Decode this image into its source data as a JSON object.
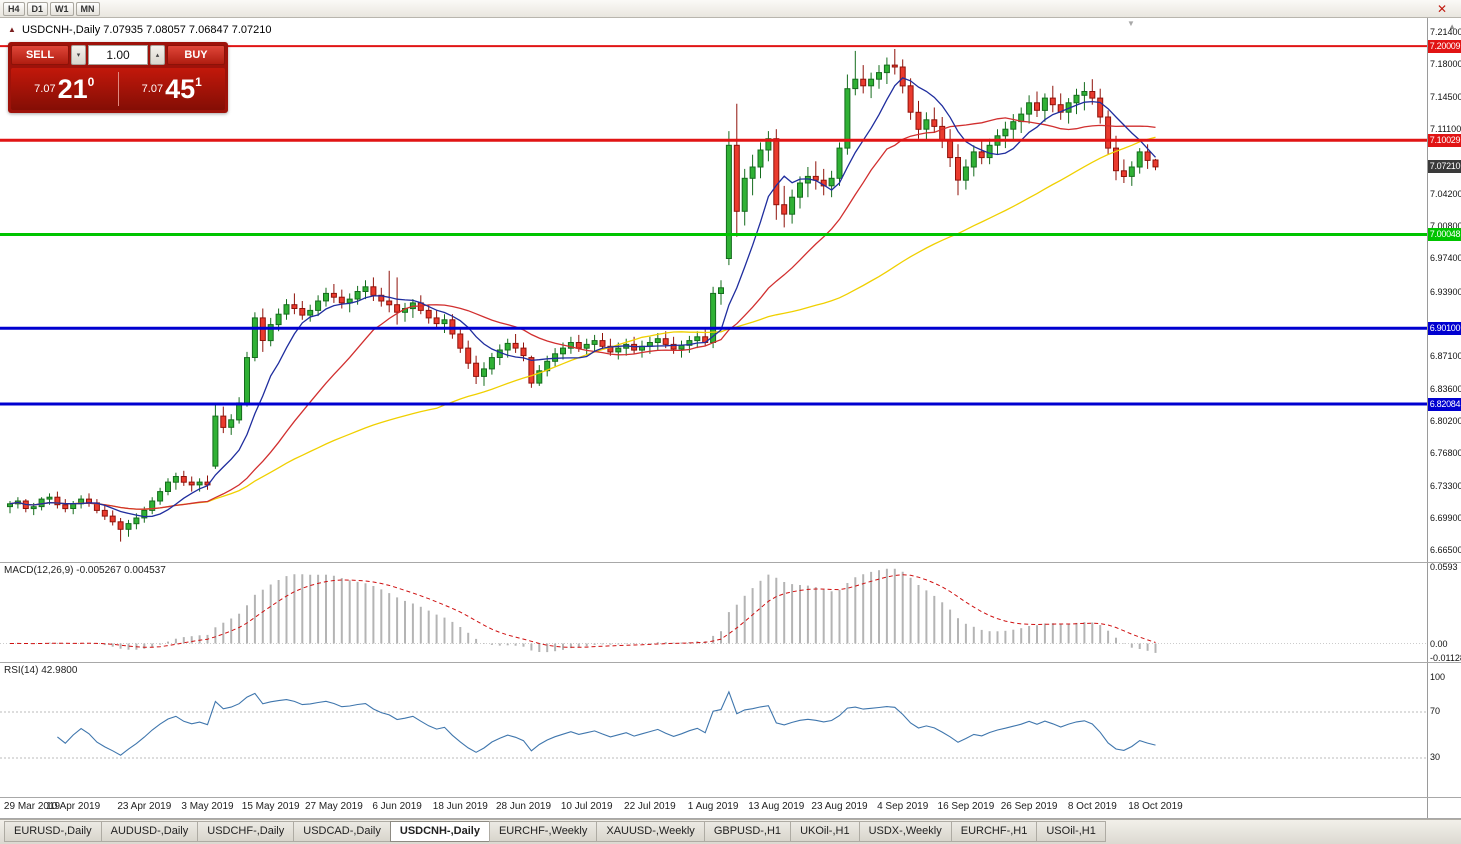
{
  "toolbar": {
    "timeframes": [
      "H4",
      "D1",
      "W1",
      "MN"
    ]
  },
  "icons": {
    "close": "✕",
    "up_arrow": "▴",
    "down_arrow": "▾",
    "scroll_up": "▲",
    "shift_marker": "▼",
    "title_marker": "▲"
  },
  "main": {
    "title": "USDCNH-,Daily",
    "ohlc": "7.07935 7.08057 7.06847 7.07210"
  },
  "trade_panel": {
    "sell_label": "SELL",
    "buy_label": "BUY",
    "volume": "1.00",
    "sell_price_small": "7.07",
    "sell_price_big": "21",
    "sell_price_sup": "0",
    "buy_price_small": "7.07",
    "buy_price_big": "45",
    "buy_price_sup": "1"
  },
  "indicators": {
    "macd": {
      "label": "MACD(12,26,9) -0.005267 0.004537",
      "axis": [
        {
          "text": "0.0593",
          "value": 0.0593
        },
        {
          "text": "0.00",
          "value": 0
        },
        {
          "text": "-0.01128",
          "value": -0.01128
        }
      ]
    },
    "rsi": {
      "label": "RSI(14) 42.9800",
      "axis": [
        {
          "text": "100",
          "value": 100
        },
        {
          "text": "70",
          "value": 70
        },
        {
          "text": "30",
          "value": 30
        }
      ]
    }
  },
  "price_axis": {
    "labels": [
      {
        "text": "7.21400",
        "value": 7.214
      },
      {
        "text": "7.18000",
        "value": 7.18
      },
      {
        "text": "7.14500",
        "value": 7.145
      },
      {
        "text": "7.11100",
        "value": 7.111
      },
      {
        "text": "7.04200",
        "value": 7.042
      },
      {
        "text": "7.00800",
        "value": 7.008
      },
      {
        "text": "6.97400",
        "value": 6.974
      },
      {
        "text": "6.93900",
        "value": 6.939
      },
      {
        "text": "6.87100",
        "value": 6.871
      },
      {
        "text": "6.83600",
        "value": 6.836
      },
      {
        "text": "6.80200",
        "value": 6.802
      },
      {
        "text": "6.76800",
        "value": 6.768
      },
      {
        "text": "6.73300",
        "value": 6.733
      },
      {
        "text": "6.69900",
        "value": 6.699
      },
      {
        "text": "6.66500",
        "value": 6.665
      }
    ],
    "badges": [
      {
        "text": "7.20009",
        "value": 7.20009,
        "color": "#e11414",
        "current": false
      },
      {
        "text": "7.10029",
        "value": 7.10029,
        "color": "#e11414",
        "current": false
      },
      {
        "text": "7.07210",
        "value": 7.0721,
        "color": "#3a3a3a",
        "current": true
      },
      {
        "text": "7.00048",
        "value": 7.00048,
        "color": "#00c400",
        "current": false
      },
      {
        "text": "6.90100",
        "value": 6.901,
        "color": "#0000d0",
        "current": false
      },
      {
        "text": "6.82084",
        "value": 6.82084,
        "color": "#0000d0",
        "current": false
      }
    ]
  },
  "tabs": [
    {
      "label": "EURUSD-,Daily",
      "active": false
    },
    {
      "label": "AUDUSD-,Daily",
      "active": false
    },
    {
      "label": "USDCHF-,Daily",
      "active": false
    },
    {
      "label": "USDCAD-,Daily",
      "active": false
    },
    {
      "label": "USDCNH-,Daily",
      "active": true
    },
    {
      "label": "EURCHF-,Weekly",
      "active": false
    },
    {
      "label": "XAUUSD-,Weekly",
      "active": false
    },
    {
      "label": "GBPUSD-,H1",
      "active": false
    },
    {
      "label": "UKOil-,H1",
      "active": false
    },
    {
      "label": "USDX-,Weekly",
      "active": false
    },
    {
      "label": "EURCHF-,H1",
      "active": false
    },
    {
      "label": "USOil-,H1",
      "active": false
    }
  ],
  "chart_data": {
    "type": "candlestick",
    "symbol": "USDCNH",
    "timeframe": "Daily",
    "current": {
      "open": 7.07935,
      "high": 7.08057,
      "low": 7.06847,
      "close": 7.0721,
      "bid": "7.07210",
      "ask": "7.07451"
    },
    "price_axis_max": 7.214,
    "price_axis_min": 6.665,
    "colors": {
      "candle_up": {
        "fill": "#30b135",
        "border": "#156c1d"
      },
      "candle_down": {
        "fill": "#ea3b2e",
        "border": "#8f120a"
      },
      "macd_histogram": "#b4b4b4",
      "macd_signal": "#cf1010",
      "rsi_line": "#3f76ad"
    },
    "ma": [
      {
        "period": 8,
        "color": "#1f2d9e"
      },
      {
        "period": 21,
        "color": "#d12f2f"
      },
      {
        "period": 55,
        "color": "#f0d000"
      }
    ],
    "levels": [
      {
        "price": 7.20009,
        "color": "#e11414",
        "width": 2
      },
      {
        "price": 7.10029,
        "color": "#e11414",
        "width": 3
      },
      {
        "price": 7.00048,
        "color": "#00c400",
        "width": 3
      },
      {
        "price": 6.901,
        "color": "#0000d0",
        "width": 3
      },
      {
        "price": 6.82084,
        "color": "#0000d0",
        "width": 3
      }
    ],
    "macd": {
      "fast": 12,
      "slow": 26,
      "signal": 9,
      "value": -0.005267,
      "signal_value": 0.004537,
      "scale_max": 0.0593,
      "scale_min": -0.01128
    },
    "rsi": {
      "period": 14,
      "value": 42.98,
      "levels": [
        70,
        30
      ]
    },
    "x_labels": [
      {
        "text": "29 Mar 2019",
        "index": 0
      },
      {
        "text": "10 Apr 2019",
        "index": 8
      },
      {
        "text": "23 Apr 2019",
        "index": 17
      },
      {
        "text": "3 May 2019",
        "index": 25
      },
      {
        "text": "15 May 2019",
        "index": 33
      },
      {
        "text": "27 May 2019",
        "index": 41
      },
      {
        "text": "6 Jun 2019",
        "index": 49
      },
      {
        "text": "18 Jun 2019",
        "index": 57
      },
      {
        "text": "28 Jun 2019",
        "index": 65
      },
      {
        "text": "10 Jul 2019",
        "index": 73
      },
      {
        "text": "22 Jul 2019",
        "index": 81
      },
      {
        "text": "1 Aug 2019",
        "index": 89
      },
      {
        "text": "13 Aug 2019",
        "index": 97
      },
      {
        "text": "23 Aug 2019",
        "index": 105
      },
      {
        "text": "4 Sep 2019",
        "index": 113
      },
      {
        "text": "16 Sep 2019",
        "index": 121
      },
      {
        "text": "26 Sep 2019",
        "index": 129
      },
      {
        "text": "8 Oct 2019",
        "index": 137
      },
      {
        "text": "18 Oct 2019",
        "index": 145
      }
    ],
    "candles": [
      [
        6.712,
        6.718,
        6.705,
        6.715
      ],
      [
        6.715,
        6.722,
        6.71,
        6.718
      ],
      [
        6.718,
        6.72,
        6.706,
        6.71
      ],
      [
        6.71,
        6.716,
        6.703,
        6.712
      ],
      [
        6.712,
        6.722,
        6.708,
        6.72
      ],
      [
        6.72,
        6.726,
        6.714,
        6.722
      ],
      [
        6.722,
        6.728,
        6.71,
        6.714
      ],
      [
        6.714,
        6.72,
        6.706,
        6.71
      ],
      [
        6.71,
        6.718,
        6.704,
        6.715
      ],
      [
        6.715,
        6.724,
        6.71,
        6.72
      ],
      [
        6.72,
        6.726,
        6.712,
        6.716
      ],
      [
        6.716,
        6.72,
        6.705,
        6.708
      ],
      [
        6.708,
        6.714,
        6.698,
        6.702
      ],
      [
        6.702,
        6.708,
        6.692,
        6.696
      ],
      [
        6.696,
        6.7,
        6.675,
        6.688
      ],
      [
        6.688,
        6.698,
        6.68,
        6.694
      ],
      [
        6.694,
        6.705,
        6.688,
        6.7
      ],
      [
        6.7,
        6.712,
        6.695,
        6.708
      ],
      [
        6.708,
        6.722,
        6.704,
        6.718
      ],
      [
        6.718,
        6.732,
        6.714,
        6.728
      ],
      [
        6.728,
        6.742,
        6.724,
        6.738
      ],
      [
        6.738,
        6.748,
        6.73,
        6.744
      ],
      [
        6.744,
        6.75,
        6.734,
        6.738
      ],
      [
        6.738,
        6.744,
        6.728,
        6.735
      ],
      [
        6.735,
        6.742,
        6.728,
        6.738
      ],
      [
        6.738,
        6.745,
        6.73,
        6.735
      ],
      [
        6.755,
        6.82,
        6.752,
        6.808
      ],
      [
        6.808,
        6.818,
        6.79,
        6.796
      ],
      [
        6.796,
        6.81,
        6.788,
        6.804
      ],
      [
        6.804,
        6.828,
        6.8,
        6.822
      ],
      [
        6.822,
        6.876,
        6.818,
        6.87
      ],
      [
        6.87,
        6.918,
        6.866,
        6.912
      ],
      [
        6.912,
        6.922,
        6.876,
        6.888
      ],
      [
        6.888,
        6.912,
        6.882,
        6.905
      ],
      [
        6.905,
        6.922,
        6.898,
        6.916
      ],
      [
        6.916,
        6.932,
        6.91,
        6.926
      ],
      [
        6.926,
        6.938,
        6.916,
        6.922
      ],
      [
        6.922,
        6.93,
        6.91,
        6.915
      ],
      [
        6.915,
        6.926,
        6.908,
        6.92
      ],
      [
        6.92,
        6.936,
        6.914,
        6.93
      ],
      [
        6.93,
        6.944,
        6.924,
        6.938
      ],
      [
        6.938,
        6.948,
        6.928,
        6.934
      ],
      [
        6.934,
        6.942,
        6.922,
        6.928
      ],
      [
        6.928,
        6.938,
        6.918,
        6.932
      ],
      [
        6.932,
        6.946,
        6.926,
        6.94
      ],
      [
        6.94,
        6.952,
        6.932,
        6.945
      ],
      [
        6.945,
        6.955,
        6.93,
        6.936
      ],
      [
        6.936,
        6.944,
        6.924,
        6.93
      ],
      [
        6.93,
        6.962,
        6.918,
        6.926
      ],
      [
        6.926,
        6.955,
        6.905,
        6.918
      ],
      [
        6.918,
        6.928,
        6.908,
        6.922
      ],
      [
        6.922,
        6.932,
        6.912,
        6.928
      ],
      [
        6.928,
        6.936,
        6.916,
        6.92
      ],
      [
        6.92,
        6.926,
        6.906,
        6.912
      ],
      [
        6.912,
        6.92,
        6.9,
        6.906
      ],
      [
        6.906,
        6.916,
        6.896,
        6.91
      ],
      [
        6.91,
        6.916,
        6.89,
        6.895
      ],
      [
        6.895,
        6.902,
        6.875,
        6.88
      ],
      [
        6.88,
        6.888,
        6.858,
        6.864
      ],
      [
        6.864,
        6.872,
        6.842,
        6.85
      ],
      [
        6.85,
        6.865,
        6.84,
        6.858
      ],
      [
        6.858,
        6.875,
        6.852,
        6.87
      ],
      [
        6.87,
        6.884,
        6.862,
        6.878
      ],
      [
        6.878,
        6.89,
        6.87,
        6.885
      ],
      [
        6.885,
        6.895,
        6.875,
        6.88
      ],
      [
        6.88,
        6.886,
        6.866,
        6.872
      ],
      [
        6.87,
        6.872,
        6.838,
        6.843
      ],
      [
        6.843,
        6.862,
        6.84,
        6.856
      ],
      [
        6.856,
        6.872,
        6.85,
        6.866
      ],
      [
        6.866,
        6.88,
        6.86,
        6.874
      ],
      [
        6.874,
        6.886,
        6.868,
        6.88
      ],
      [
        6.88,
        6.892,
        6.874,
        6.886
      ],
      [
        6.886,
        6.894,
        6.876,
        6.88
      ],
      [
        6.88,
        6.89,
        6.872,
        6.884
      ],
      [
        6.884,
        6.894,
        6.876,
        6.888
      ],
      [
        6.888,
        6.896,
        6.878,
        6.882
      ],
      [
        6.882,
        6.89,
        6.872,
        6.876
      ],
      [
        6.876,
        6.886,
        6.868,
        6.88
      ],
      [
        6.88,
        6.89,
        6.872,
        6.884
      ],
      [
        6.884,
        6.892,
        6.874,
        6.878
      ],
      [
        6.878,
        6.888,
        6.87,
        6.882
      ],
      [
        6.882,
        6.892,
        6.874,
        6.886
      ],
      [
        6.886,
        6.896,
        6.878,
        6.89
      ],
      [
        6.89,
        6.898,
        6.88,
        6.884
      ],
      [
        6.884,
        6.892,
        6.874,
        6.879
      ],
      [
        6.879,
        6.888,
        6.87,
        6.883
      ],
      [
        6.883,
        6.893,
        6.875,
        6.888
      ],
      [
        6.888,
        6.898,
        6.88,
        6.892
      ],
      [
        6.892,
        6.9,
        6.882,
        6.886
      ],
      [
        6.886,
        6.945,
        6.88,
        6.938
      ],
      [
        6.938,
        6.952,
        6.926,
        6.944
      ],
      [
        6.975,
        7.11,
        6.968,
        7.095
      ],
      [
        7.095,
        7.139,
        6.998,
        7.025
      ],
      [
        7.025,
        7.07,
        7.01,
        7.06
      ],
      [
        7.06,
        7.085,
        7.042,
        7.072
      ],
      [
        7.072,
        7.098,
        7.06,
        7.09
      ],
      [
        7.09,
        7.11,
        7.078,
        7.102
      ],
      [
        7.102,
        7.112,
        7.016,
        7.032
      ],
      [
        7.032,
        7.052,
        7.008,
        7.022
      ],
      [
        7.022,
        7.048,
        7.012,
        7.04
      ],
      [
        7.04,
        7.062,
        7.028,
        7.055
      ],
      [
        7.055,
        7.072,
        7.04,
        7.062
      ],
      [
        7.062,
        7.078,
        7.048,
        7.058
      ],
      [
        7.058,
        7.07,
        7.042,
        7.052
      ],
      [
        7.052,
        7.068,
        7.04,
        7.06
      ],
      [
        7.06,
        7.098,
        7.052,
        7.092
      ],
      [
        7.092,
        7.17,
        7.085,
        7.155
      ],
      [
        7.155,
        7.195,
        7.148,
        7.165
      ],
      [
        7.165,
        7.18,
        7.15,
        7.158
      ],
      [
        7.158,
        7.172,
        7.145,
        7.165
      ],
      [
        7.165,
        7.18,
        7.155,
        7.172
      ],
      [
        7.172,
        7.188,
        7.16,
        7.18
      ],
      [
        7.18,
        7.197,
        7.17,
        7.178
      ],
      [
        7.178,
        7.186,
        7.15,
        7.158
      ],
      [
        7.158,
        7.166,
        7.122,
        7.13
      ],
      [
        7.13,
        7.142,
        7.102,
        7.112
      ],
      [
        7.112,
        7.13,
        7.1,
        7.122
      ],
      [
        7.122,
        7.135,
        7.108,
        7.115
      ],
      [
        7.115,
        7.125,
        7.092,
        7.1
      ],
      [
        7.1,
        7.112,
        7.072,
        7.082
      ],
      [
        7.082,
        7.096,
        7.042,
        7.058
      ],
      [
        7.058,
        7.08,
        7.048,
        7.072
      ],
      [
        7.072,
        7.095,
        7.062,
        7.088
      ],
      [
        7.088,
        7.1,
        7.075,
        7.082
      ],
      [
        7.082,
        7.102,
        7.075,
        7.095
      ],
      [
        7.095,
        7.112,
        7.085,
        7.105
      ],
      [
        7.105,
        7.12,
        7.092,
        7.112
      ],
      [
        7.112,
        7.128,
        7.1,
        7.12
      ],
      [
        7.12,
        7.135,
        7.108,
        7.128
      ],
      [
        7.128,
        7.148,
        7.118,
        7.14
      ],
      [
        7.14,
        7.152,
        7.125,
        7.132
      ],
      [
        7.132,
        7.15,
        7.12,
        7.145
      ],
      [
        7.145,
        7.158,
        7.13,
        7.138
      ],
      [
        7.138,
        7.15,
        7.122,
        7.13
      ],
      [
        7.13,
        7.145,
        7.118,
        7.14
      ],
      [
        7.14,
        7.155,
        7.128,
        7.148
      ],
      [
        7.148,
        7.162,
        7.132,
        7.152
      ],
      [
        7.152,
        7.165,
        7.138,
        7.145
      ],
      [
        7.145,
        7.155,
        7.118,
        7.125
      ],
      [
        7.125,
        7.132,
        7.085,
        7.092
      ],
      [
        7.092,
        7.105,
        7.058,
        7.068
      ],
      [
        7.068,
        7.08,
        7.055,
        7.062
      ],
      [
        7.062,
        7.078,
        7.052,
        7.072
      ],
      [
        7.072,
        7.092,
        7.065,
        7.088
      ],
      [
        7.088,
        7.096,
        7.07,
        7.079
      ],
      [
        7.0794,
        7.0806,
        7.0685,
        7.0721
      ]
    ]
  }
}
